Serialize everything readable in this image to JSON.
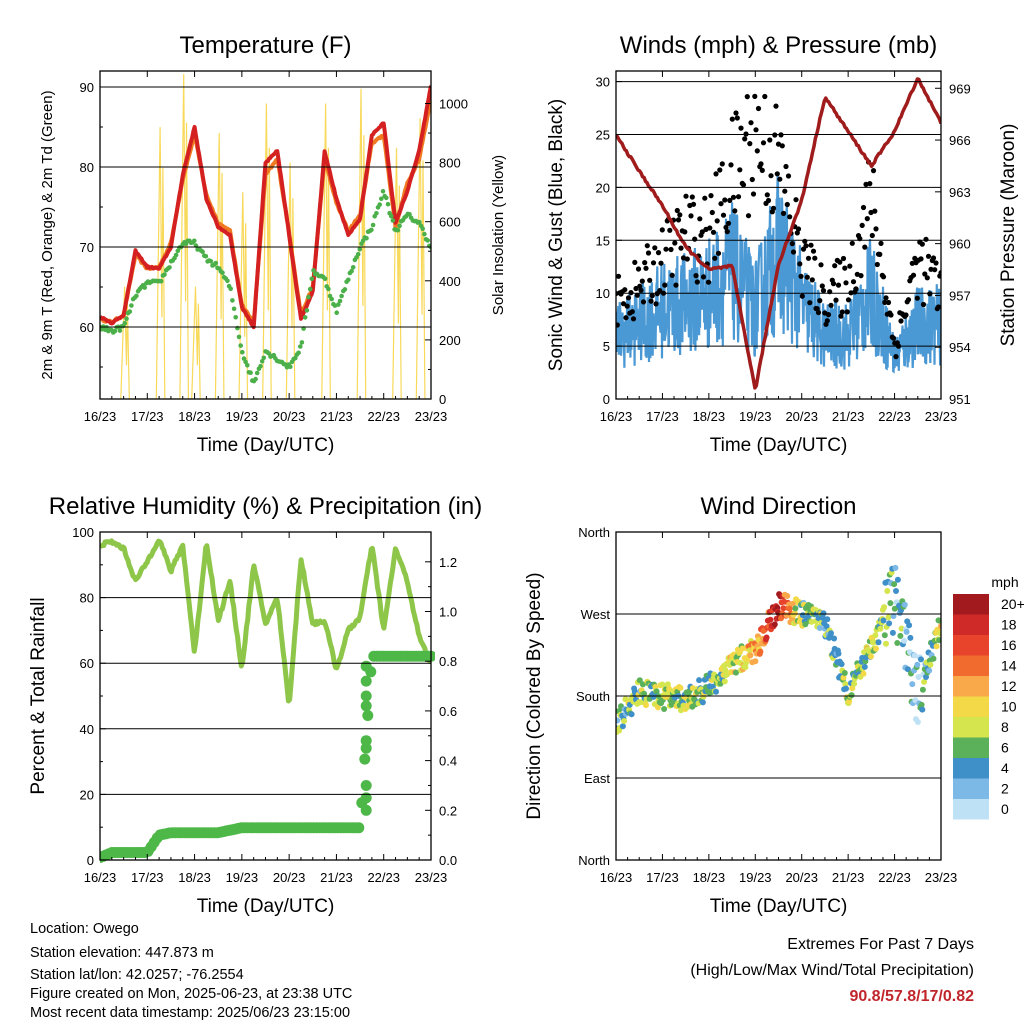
{
  "time_ticks": [
    "16/23",
    "17/23",
    "18/23",
    "19/23",
    "20/23",
    "21/23",
    "22/23",
    "23/23"
  ],
  "xlabel": "Time (Day/UTC)",
  "colors": {
    "temp2m": "#d42020",
    "temp9m": "#f07a22",
    "dewpoint": "#4cb04a",
    "solar": "#f8d95a",
    "gust": "#000000",
    "wind": "#4a98d4",
    "pressure": "#a01c1c",
    "rh": "#8ec64a",
    "precip": "#4db848",
    "extreme_value": "#c0272d"
  },
  "temperature": {
    "title": "Temperature (F)",
    "ylabel_left": "2m & 9m T (Red, Orange) & 2m Td (Green)",
    "ylabel_right": "Solar Insolation (Yellow)",
    "yticks_left": [
      "90",
      "80",
      "70",
      "60"
    ],
    "yticks_right": [
      "1000",
      "800",
      "600",
      "400",
      "200",
      "0"
    ]
  },
  "winds": {
    "title": "Winds (mph) & Pressure (mb)",
    "ylabel_left": "Sonic Wind & Gust (Blue, Black)",
    "ylabel_right": "Station Pressure (Maroon)",
    "yticks_left": [
      "30",
      "25",
      "20",
      "15",
      "10",
      "5",
      "0"
    ],
    "yticks_right": [
      "969",
      "966",
      "963",
      "960",
      "957",
      "954",
      "951"
    ]
  },
  "humidity": {
    "title": "Relative Humidity (%) & Precipitation (in)",
    "ylabel_left": "Percent & Total Rainfall",
    "yticks_left": [
      "100",
      "80",
      "60",
      "40",
      "20",
      "0"
    ],
    "yticks_right": [
      "1.2",
      "1.0",
      "0.8",
      "0.6",
      "0.4",
      "0.2",
      "0.0"
    ]
  },
  "direction": {
    "title": "Wind Direction",
    "ylabel_left": "Direction (Colored By Speed)",
    "yticks_left": [
      "North",
      "West",
      "South",
      "East",
      "North"
    ],
    "legend_title": "mph",
    "legend_labels": [
      "20+",
      "18",
      "16",
      "14",
      "12",
      "10",
      "8",
      "6",
      "4",
      "2",
      "0"
    ],
    "legend_colors": [
      "#a31a1e",
      "#cf2a27",
      "#e8442c",
      "#f16b2e",
      "#f9a94a",
      "#f3d948",
      "#d4e54e",
      "#5bb05a",
      "#3f8fc8",
      "#7db9e6",
      "#bfe1f5"
    ]
  },
  "info": {
    "location": "Location: Owego",
    "elevation": "Station elevation: 447.873 m",
    "latlon": "Station lat/lon: 42.0257; -76.2554",
    "created": "Figure created on Mon, 2025-06-23, at 23:38 UTC",
    "latest": "Most recent data timestamp: 2025/06/23 23:15:00"
  },
  "extremes": {
    "line1": "Extremes For Past 7 Days",
    "line2": "(High/Low/Max Wind/Total Precipitation)",
    "values": "90.8/57.8/17/0.82"
  },
  "chart_data": [
    {
      "type": "line",
      "title": "Temperature (F)",
      "xlabel": "Time (Day/UTC)",
      "ylabel": "2m & 9m T (Red, Orange) & 2m Td (Green)",
      "y2label": "Solar Insolation (Yellow)",
      "ylim": [
        51,
        92
      ],
      "y2lim": [
        0,
        1110
      ],
      "x": [
        16,
        16.25,
        16.5,
        16.75,
        17,
        17.25,
        17.5,
        17.75,
        18,
        18.25,
        18.5,
        18.75,
        19,
        19.25,
        19.5,
        19.75,
        20,
        20.25,
        20.5,
        20.75,
        21,
        21.25,
        21.5,
        21.75,
        22,
        22.25,
        22.5,
        22.75,
        23
      ],
      "series": [
        {
          "name": "2m T",
          "axis": "left",
          "values": [
            61.3,
            60.5,
            61.5,
            69.5,
            67.5,
            67.3,
            70,
            79,
            85,
            76,
            72.5,
            71.5,
            62.5,
            60,
            80.5,
            82,
            71.5,
            61,
            64.5,
            82,
            76,
            71.5,
            73.5,
            84,
            85.5,
            73,
            77,
            82,
            90.2
          ]
        },
        {
          "name": "9m T",
          "axis": "left",
          "values": [
            61,
            60.6,
            61.5,
            69,
            67.3,
            67.5,
            70.5,
            78.5,
            84,
            76.5,
            73,
            72,
            62.8,
            60.5,
            79,
            81,
            71.8,
            61.5,
            65,
            81,
            75.5,
            72,
            74,
            83,
            84,
            72.5,
            78,
            81,
            88.5
          ]
        },
        {
          "name": "2m Td",
          "axis": "left",
          "values": [
            60,
            59.5,
            60,
            64,
            65.5,
            65.5,
            68,
            70.5,
            70.5,
            68.5,
            67.5,
            65,
            57,
            53,
            57,
            56,
            55,
            57.5,
            67,
            66,
            62,
            66,
            70,
            72.5,
            77,
            72,
            74,
            73,
            70
          ]
        },
        {
          "name": "Solar",
          "axis": "right",
          "values": [
            0,
            0,
            380,
            0,
            0,
            920,
            0,
            1100,
            380,
            0,
            900,
            0,
            700,
            0,
            1000,
            0,
            800,
            0,
            0,
            1000,
            0,
            0,
            1050,
            0,
            0,
            850,
            0,
            950,
            500
          ]
        }
      ]
    },
    {
      "type": "line",
      "title": "Winds (mph) & Pressure (mb)",
      "xlabel": "Time (Day/UTC)",
      "ylabel": "Sonic Wind & Gust (Blue, Black)",
      "y2label": "Station Pressure (Maroon)",
      "ylim": [
        0,
        31
      ],
      "y2lim": [
        951,
        970
      ],
      "x": [
        16,
        16.5,
        17,
        17.5,
        18,
        18.5,
        19,
        19.5,
        20,
        20.5,
        21,
        21.5,
        22,
        22.5,
        23
      ],
      "series": [
        {
          "name": "Sonic Wind",
          "axis": "left",
          "values": [
            6,
            7,
            8.5,
            9,
            10,
            12,
            8.5,
            14,
            9,
            6,
            6,
            10,
            4,
            7,
            7
          ]
        },
        {
          "name": "Gust",
          "axis": "left",
          "values": [
            9,
            10.5,
            13,
            15.5,
            15,
            21,
            25,
            22,
            13,
            9.5,
            11,
            19,
            5,
            13,
            10
          ]
        },
        {
          "name": "Station Pressure",
          "axis": "right",
          "values": [
            966.3,
            964.2,
            962.2,
            959.8,
            958.5,
            958.7,
            951.5,
            958.8,
            962.5,
            968.5,
            966.5,
            964.5,
            966.5,
            969.6,
            967
          ]
        }
      ]
    },
    {
      "type": "line",
      "title": "Relative Humidity (%) & Precipitation (in)",
      "xlabel": "Time (Day/UTC)",
      "ylabel": "Percent & Total Rainfall",
      "ylim": [
        0,
        100
      ],
      "y2lim": [
        0,
        1.32
      ],
      "x": [
        16,
        16.25,
        16.5,
        16.75,
        17,
        17.25,
        17.5,
        17.75,
        18,
        18.25,
        18.5,
        18.75,
        19,
        19.25,
        19.5,
        19.75,
        20,
        20.25,
        20.5,
        20.75,
        21,
        21.25,
        21.5,
        21.75,
        22,
        22.25,
        22.5,
        22.75,
        23
      ],
      "series": [
        {
          "name": "RH",
          "axis": "left",
          "values": [
            96,
            97,
            95,
            85,
            91,
            98,
            88,
            96,
            63,
            97,
            73,
            85,
            58,
            90,
            72,
            80,
            47,
            92,
            72,
            73,
            58,
            70,
            74,
            96,
            70,
            95,
            85,
            68,
            60
          ]
        },
        {
          "name": "Total Precipitation",
          "axis": "right",
          "values": [
            0.01,
            0.03,
            0.03,
            0.03,
            0.03,
            0.1,
            0.11,
            0.11,
            0.11,
            0.11,
            0.11,
            0.12,
            0.13,
            0.13,
            0.13,
            0.13,
            0.13,
            0.13,
            0.13,
            0.13,
            0.13,
            0.13,
            0.13,
            0.82,
            0.82,
            0.82,
            0.82,
            0.82,
            0.82
          ]
        }
      ]
    },
    {
      "type": "scatter",
      "title": "Wind Direction",
      "xlabel": "Time (Day/UTC)",
      "ylabel": "Direction (Colored By Speed)",
      "ylim": [
        0,
        360
      ],
      "colorbar_label": "mph",
      "x": [
        16,
        16.5,
        17,
        17.5,
        18,
        18.5,
        19,
        19.5,
        20,
        20.5,
        21,
        21.5,
        22,
        22.5,
        23
      ],
      "series": [
        {
          "name": "Direction",
          "values": [
            150,
            185,
            180,
            175,
            190,
            215,
            230,
            280,
            270,
            260,
            185,
            230,
            290,
            180,
            260
          ]
        },
        {
          "name": "Speed",
          "values": [
            6,
            6,
            8,
            7,
            6,
            8,
            12,
            18,
            6,
            6,
            6,
            8,
            4,
            3,
            8
          ]
        }
      ]
    }
  ]
}
